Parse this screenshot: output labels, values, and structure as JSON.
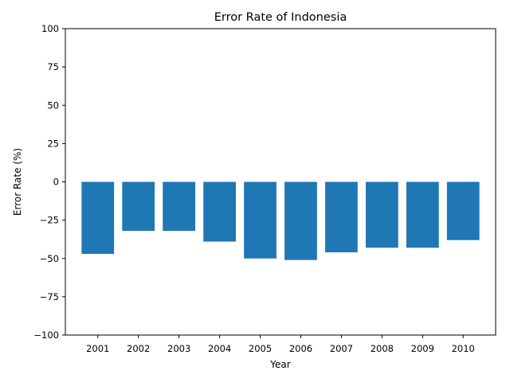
{
  "chart_data": {
    "type": "bar",
    "title": "Error Rate of Indonesia",
    "xlabel": "Year",
    "ylabel": "Error Rate (%)",
    "categories": [
      "2001",
      "2002",
      "2003",
      "2004",
      "2005",
      "2006",
      "2007",
      "2008",
      "2009",
      "2010"
    ],
    "values": [
      -47,
      -32,
      -32,
      -39,
      -50,
      -51,
      -46,
      -43,
      -43,
      -38
    ],
    "ylim": [
      -100,
      100
    ],
    "yticks": [
      -100,
      -75,
      -50,
      -25,
      0,
      25,
      50,
      75,
      100
    ],
    "ytick_labels": [
      "−100",
      "−75",
      "−50",
      "−25",
      "0",
      "25",
      "50",
      "75",
      "100"
    ],
    "bar_color": "#1f77b4",
    "grid": false,
    "legend": "none"
  }
}
